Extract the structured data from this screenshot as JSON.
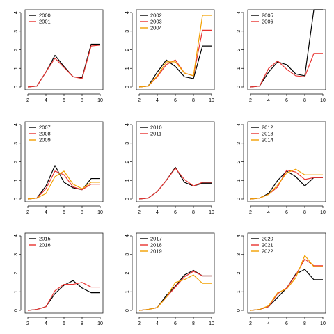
{
  "chart_data": [
    {
      "type": "line",
      "x": [
        2,
        3,
        4,
        5,
        6,
        7,
        8,
        9,
        10
      ],
      "xlim": [
        2,
        10
      ],
      "ylim": [
        0,
        4
      ],
      "xticks": [
        2,
        4,
        6,
        8,
        10
      ],
      "yticks": [
        0,
        1,
        2,
        3,
        4
      ],
      "legend_position": "top-left",
      "series": [
        {
          "name": "2000",
          "color": "#000000",
          "values": [
            0,
            0.05,
            0.8,
            1.7,
            1.1,
            0.55,
            0.5,
            2.3,
            2.3
          ]
        },
        {
          "name": "2001",
          "color": "#e8322f",
          "values": [
            0,
            0.05,
            0.8,
            1.55,
            1.05,
            0.55,
            0.45,
            2.2,
            2.25
          ]
        }
      ]
    },
    {
      "type": "line",
      "x": [
        2,
        3,
        4,
        5,
        6,
        7,
        8,
        9,
        10
      ],
      "xlim": [
        2,
        10
      ],
      "ylim": [
        0,
        4
      ],
      "xticks": [
        2,
        4,
        6,
        8,
        10
      ],
      "yticks": [
        0,
        1,
        2,
        3,
        4
      ],
      "legend_position": "top-left",
      "series": [
        {
          "name": "2002",
          "color": "#000000",
          "values": [
            0,
            0.05,
            0.8,
            1.45,
            1.1,
            0.55,
            0.45,
            2.2,
            2.2
          ]
        },
        {
          "name": "2003",
          "color": "#e8322f",
          "values": [
            0,
            0.05,
            0.55,
            1.2,
            1.45,
            0.75,
            0.6,
            3.05,
            3.05
          ]
        },
        {
          "name": "2004",
          "color": "#f2a000",
          "values": [
            0,
            0.05,
            0.6,
            1.35,
            1.35,
            0.75,
            0.6,
            3.85,
            3.85
          ]
        }
      ]
    },
    {
      "type": "line",
      "x": [
        2,
        3,
        4,
        5,
        6,
        7,
        8,
        9,
        10
      ],
      "xlim": [
        2,
        10
      ],
      "ylim": [
        0,
        4
      ],
      "xticks": [
        2,
        4,
        6,
        8,
        10
      ],
      "yticks": [
        0,
        1,
        2,
        3,
        4
      ],
      "legend_position": "top-left",
      "series": [
        {
          "name": "2005",
          "color": "#000000",
          "values": [
            0,
            0.05,
            0.8,
            1.35,
            1.2,
            0.7,
            0.6,
            4.15,
            4.15
          ]
        },
        {
          "name": "2006",
          "color": "#e8322f",
          "values": [
            0,
            0.05,
            1.0,
            1.4,
            0.95,
            0.6,
            0.55,
            1.8,
            1.8
          ]
        }
      ]
    },
    {
      "type": "line",
      "x": [
        2,
        3,
        4,
        5,
        6,
        7,
        8,
        9,
        10
      ],
      "xlim": [
        2,
        10
      ],
      "ylim": [
        0,
        4
      ],
      "xticks": [
        2,
        4,
        6,
        8,
        10
      ],
      "yticks": [
        0,
        1,
        2,
        3,
        4
      ],
      "legend_position": "top-left",
      "series": [
        {
          "name": "2007",
          "color": "#000000",
          "values": [
            0,
            0.05,
            0.7,
            1.8,
            0.9,
            0.6,
            0.5,
            1.1,
            1.1
          ]
        },
        {
          "name": "2008",
          "color": "#e8322f",
          "values": [
            0,
            0.05,
            0.55,
            1.5,
            1.3,
            0.65,
            0.5,
            0.8,
            0.8
          ]
        },
        {
          "name": "2009",
          "color": "#f2a000",
          "values": [
            0,
            0.05,
            0.3,
            1.2,
            1.5,
            0.8,
            0.55,
            0.9,
            0.9
          ]
        }
      ]
    },
    {
      "type": "line",
      "x": [
        2,
        3,
        4,
        5,
        6,
        7,
        8,
        9,
        10
      ],
      "xlim": [
        2,
        10
      ],
      "ylim": [
        0,
        4
      ],
      "xticks": [
        2,
        4,
        6,
        8,
        10
      ],
      "yticks": [
        0,
        1,
        2,
        3,
        4
      ],
      "legend_position": "top-left",
      "series": [
        {
          "name": "2010",
          "color": "#000000",
          "values": [
            0,
            0.05,
            0.4,
            1.0,
            1.7,
            0.9,
            0.7,
            0.85,
            0.85
          ]
        },
        {
          "name": "2011",
          "color": "#e8322f",
          "values": [
            0,
            0.05,
            0.4,
            1.0,
            1.65,
            1.05,
            0.7,
            0.9,
            0.9
          ]
        }
      ]
    },
    {
      "type": "line",
      "x": [
        2,
        3,
        4,
        5,
        6,
        7,
        8,
        9,
        10
      ],
      "xlim": [
        2,
        10
      ],
      "ylim": [
        0,
        4
      ],
      "xticks": [
        2,
        4,
        6,
        8,
        10
      ],
      "yticks": [
        0,
        1,
        2,
        3,
        4
      ],
      "legend_position": "top-left",
      "series": [
        {
          "name": "2012",
          "color": "#000000",
          "values": [
            0,
            0.05,
            0.3,
            1.0,
            1.5,
            1.2,
            0.7,
            1.15,
            1.15
          ]
        },
        {
          "name": "2013",
          "color": "#e8322f",
          "values": [
            0,
            0.05,
            0.25,
            0.65,
            1.55,
            1.45,
            1.05,
            1.15,
            1.15
          ]
        },
        {
          "name": "2014",
          "color": "#f2a000",
          "values": [
            0,
            0.05,
            0.25,
            0.75,
            1.4,
            1.6,
            1.3,
            1.3,
            1.3
          ]
        }
      ]
    },
    {
      "type": "line",
      "x": [
        2,
        3,
        4,
        5,
        6,
        7,
        8,
        9,
        10
      ],
      "xlim": [
        2,
        10
      ],
      "ylim": [
        0,
        4
      ],
      "xticks": [
        2,
        4,
        6,
        8,
        10
      ],
      "yticks": [
        0,
        1,
        2,
        3,
        4
      ],
      "legend_position": "top-left",
      "series": [
        {
          "name": "2015",
          "color": "#000000",
          "values": [
            0,
            0.05,
            0.2,
            0.9,
            1.35,
            1.6,
            1.2,
            0.95,
            0.95
          ]
        },
        {
          "name": "2016",
          "color": "#e8322f",
          "values": [
            0,
            0.05,
            0.2,
            1.05,
            1.4,
            1.4,
            1.5,
            1.25,
            1.25
          ]
        }
      ]
    },
    {
      "type": "line",
      "x": [
        2,
        3,
        4,
        5,
        6,
        7,
        8,
        9,
        10
      ],
      "xlim": [
        2,
        10
      ],
      "ylim": [
        0,
        4
      ],
      "xticks": [
        2,
        4,
        6,
        8,
        10
      ],
      "yticks": [
        0,
        1,
        2,
        3,
        4
      ],
      "legend_position": "top-left",
      "series": [
        {
          "name": "2017",
          "color": "#000000",
          "values": [
            0,
            0.05,
            0.15,
            0.8,
            1.3,
            1.9,
            2.15,
            1.85,
            1.85
          ]
        },
        {
          "name": "2018",
          "color": "#e8322f",
          "values": [
            0,
            0.05,
            0.15,
            0.7,
            1.25,
            1.8,
            2.1,
            1.85,
            1.85
          ]
        },
        {
          "name": "2019",
          "color": "#f2a000",
          "values": [
            0,
            0.05,
            0.15,
            0.7,
            1.5,
            1.65,
            1.9,
            1.45,
            1.45
          ]
        }
      ]
    },
    {
      "type": "line",
      "x": [
        2,
        3,
        4,
        5,
        6,
        7,
        8,
        9,
        10
      ],
      "xlim": [
        2,
        10
      ],
      "ylim": [
        0,
        4
      ],
      "xticks": [
        2,
        4,
        6,
        8,
        10
      ],
      "yticks": [
        0,
        1,
        2,
        3,
        4
      ],
      "legend_position": "top-left",
      "series": [
        {
          "name": "2020",
          "color": "#000000",
          "values": [
            0,
            0.05,
            0.2,
            0.7,
            1.2,
            1.95,
            2.2,
            1.65,
            1.65
          ]
        },
        {
          "name": "2021",
          "color": "#e8322f",
          "values": [
            0,
            0.05,
            0.2,
            0.9,
            1.2,
            1.9,
            2.75,
            2.4,
            2.4
          ]
        },
        {
          "name": "2022",
          "color": "#f2a000",
          "values": [
            0,
            0.05,
            0.25,
            0.95,
            1.15,
            1.75,
            2.95,
            2.35,
            2.35
          ]
        }
      ]
    }
  ]
}
